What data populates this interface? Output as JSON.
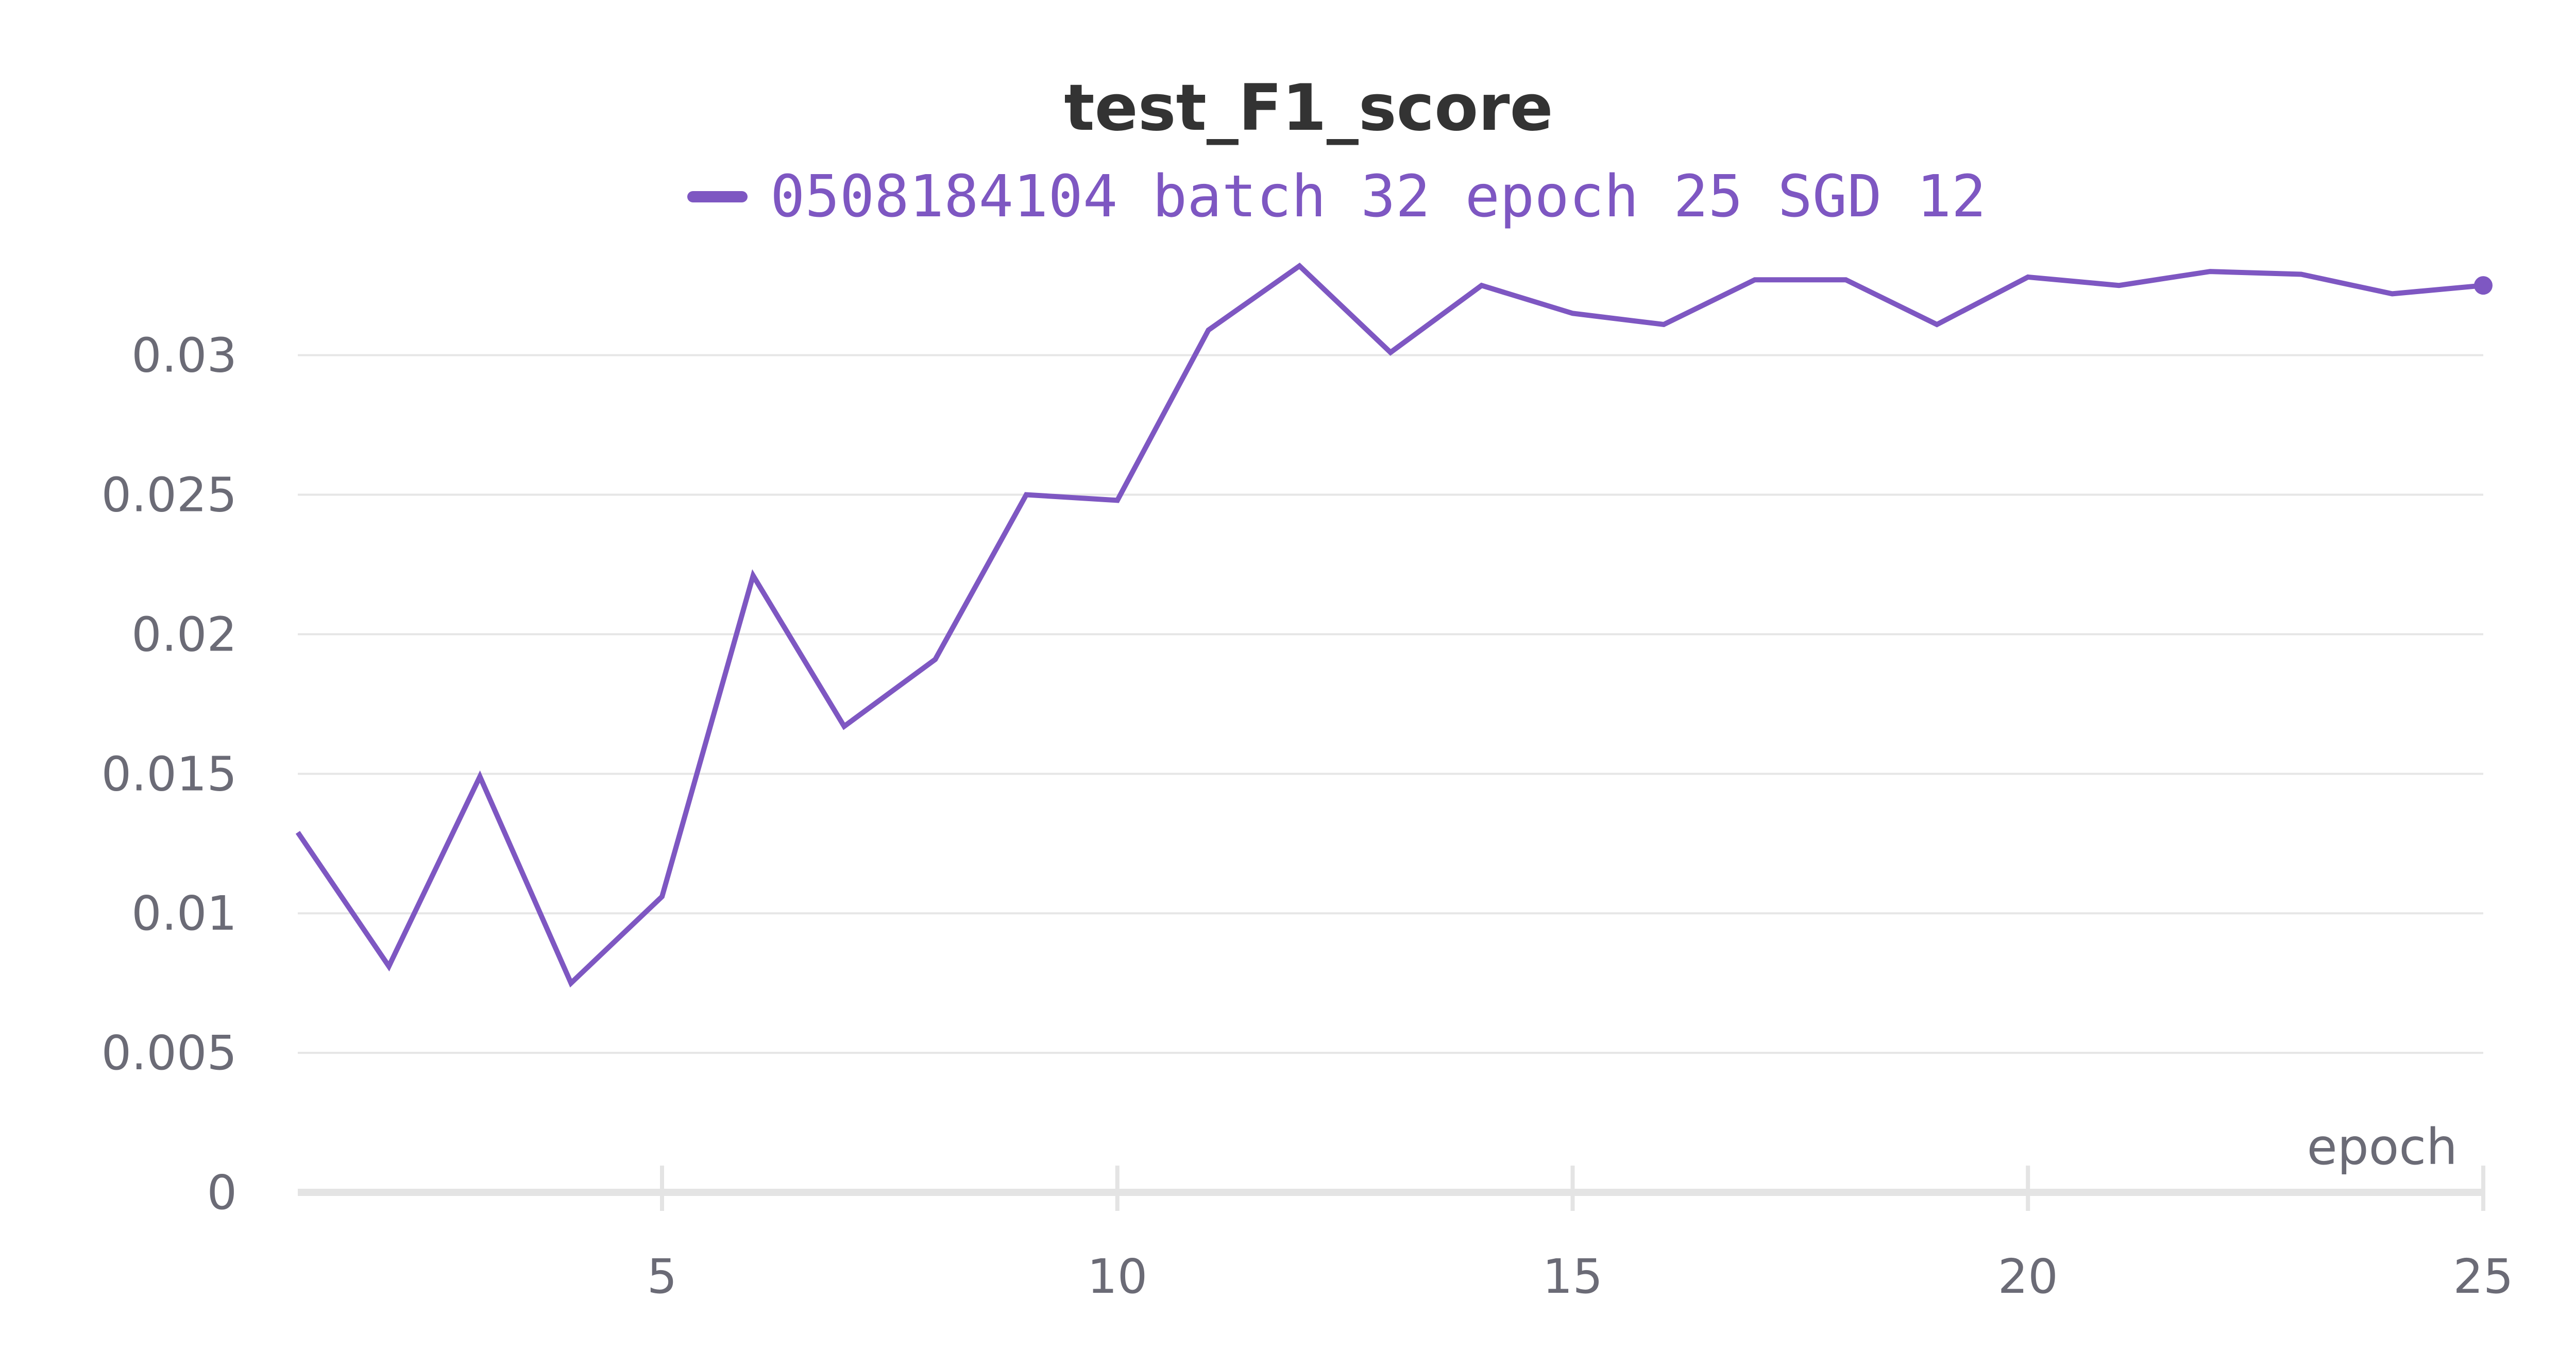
{
  "chart_data": {
    "type": "line",
    "title": "test_F1_score",
    "xlabel": "epoch",
    "ylabel": "",
    "xlim": [
      1,
      25
    ],
    "ylim": [
      0,
      0.0335
    ],
    "x_ticks": [
      5,
      10,
      15,
      20,
      25
    ],
    "x_tick_labels": [
      "5",
      "10",
      "15",
      "20",
      "25"
    ],
    "y_ticks": [
      0,
      0.005,
      0.01,
      0.015,
      0.02,
      0.025,
      0.03
    ],
    "y_tick_labels": [
      "0",
      "0.005",
      "0.01",
      "0.015",
      "0.02",
      "0.025",
      "0.03"
    ],
    "grid": true,
    "legend_position": "top-center",
    "series": [
      {
        "name": "0508184104 batch 32 epoch 25 SGD 12",
        "color": "#7e57c2",
        "x": [
          1,
          2,
          3,
          4,
          5,
          6,
          7,
          8,
          9,
          10,
          11,
          12,
          13,
          14,
          15,
          16,
          17,
          18,
          19,
          20,
          21,
          22,
          23,
          24,
          25
        ],
        "values": [
          0.0129,
          0.0081,
          0.0149,
          0.0075,
          0.0106,
          0.0221,
          0.0167,
          0.0191,
          0.025,
          0.0248,
          0.0309,
          0.0332,
          0.0301,
          0.0325,
          0.0315,
          0.0311,
          0.0327,
          0.0327,
          0.0311,
          0.0328,
          0.0325,
          0.033,
          0.0329,
          0.0322,
          0.0325
        ]
      }
    ]
  }
}
